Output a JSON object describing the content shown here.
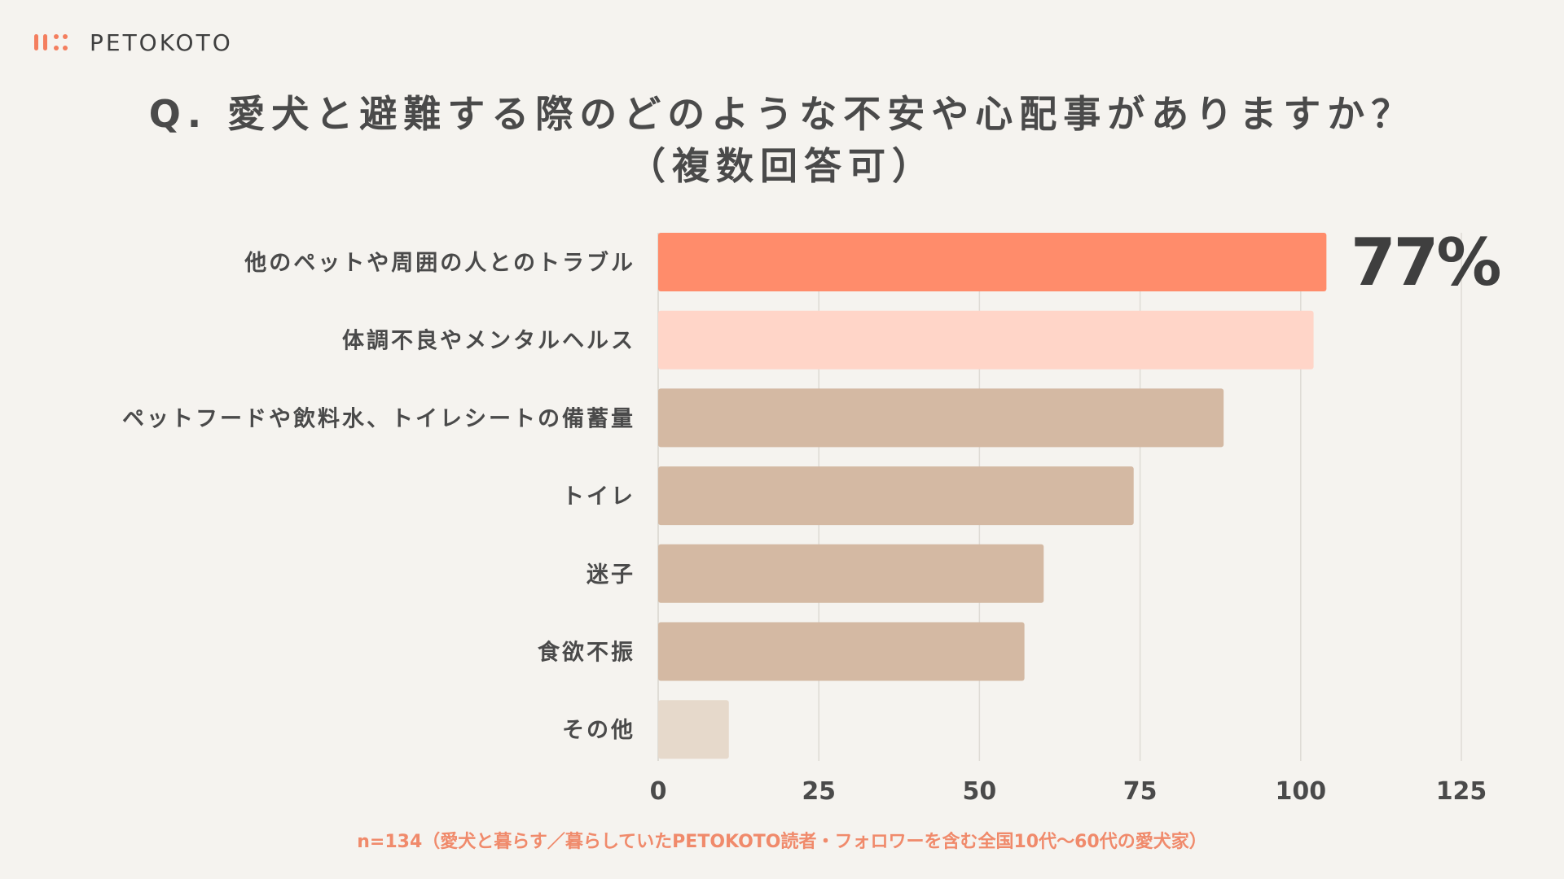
{
  "brand": {
    "name": "PETOKOTO",
    "accent_color": "#f47e5e"
  },
  "title": {
    "line1": "Q. 愛犬と避難する際のどのような不安や心配事がありますか？",
    "line2": "（複数回答可）"
  },
  "chart_data": {
    "type": "bar",
    "orientation": "horizontal",
    "categories": [
      "他のペットや周囲の人とのトラブル",
      "体調不良やメンタルヘルス",
      "ペットフードや飲料水、トイレシートの備蓄量",
      "トイレ",
      "迷子",
      "食欲不振",
      "その他"
    ],
    "values": [
      104,
      102,
      88,
      74,
      60,
      57,
      11
    ],
    "bar_colors": [
      "#ff8c6b",
      "#ffd5c8",
      "#d4b9a3",
      "#d4b9a3",
      "#d4b9a3",
      "#d4b9a3",
      "#e6d9cb"
    ],
    "xlim": [
      0,
      125
    ],
    "xticks": [
      0,
      25,
      50,
      75,
      100,
      125
    ],
    "grid": true,
    "highlight_label": "77%",
    "highlight_index": 0
  },
  "footnote": "n=134（愛犬と暮らす／暮らしていたPETOKOTO読者・フォロワーを含む全国10代〜60代の愛犬家）"
}
